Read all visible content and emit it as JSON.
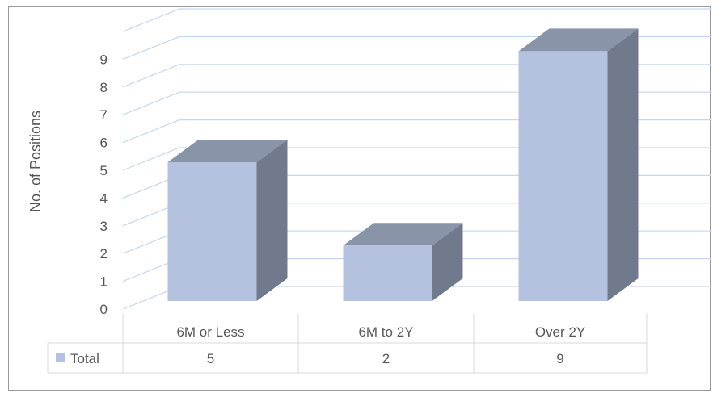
{
  "chart_data": {
    "type": "bar",
    "style": "3d-column-with-data-table",
    "categories": [
      "6M or Less",
      "6M to 2Y",
      "Over 2Y"
    ],
    "series": [
      {
        "name": "Total",
        "values": [
          5,
          2,
          9
        ],
        "color": "#b4c2e0",
        "side_color": "#717a8c",
        "top_color": "#8a94a8"
      }
    ],
    "title": "",
    "xlabel": "",
    "ylabel": "No. of Positions",
    "ylim": [
      0,
      9
    ],
    "yticks": [
      0,
      1,
      2,
      3,
      4,
      5,
      6,
      7,
      8,
      9
    ],
    "grid": true,
    "grid_color": "#c5d6f0",
    "data_table": true,
    "table_border_color": "#d9d9d9"
  }
}
